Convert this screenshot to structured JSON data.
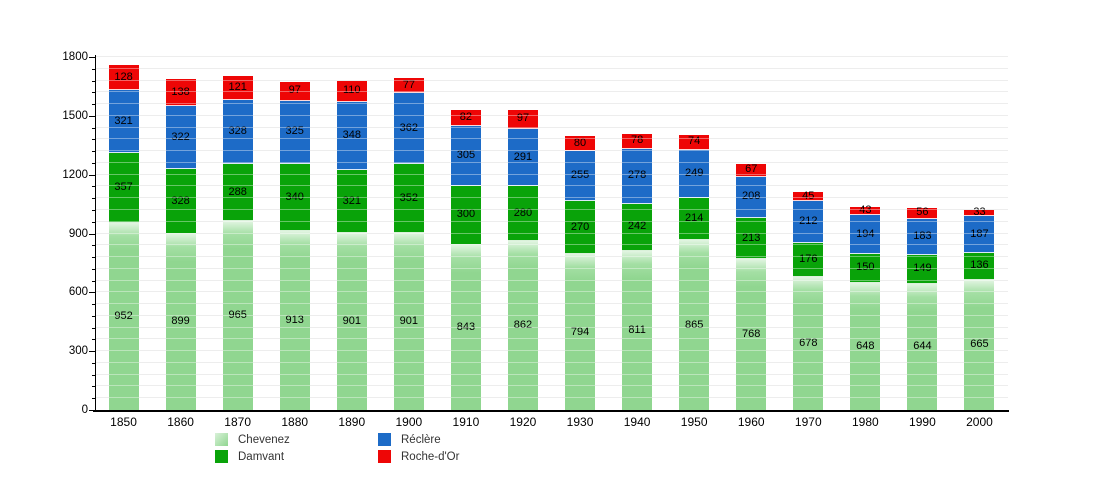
{
  "chart_data": {
    "type": "bar",
    "stacked": true,
    "categories": [
      "1850",
      "1860",
      "1870",
      "1880",
      "1890",
      "1900",
      "1910",
      "1920",
      "1930",
      "1940",
      "1950",
      "1960",
      "1970",
      "1980",
      "1990",
      "2000"
    ],
    "series": [
      {
        "name": "Chevenez",
        "color": "#90d690",
        "values": [
          952,
          899,
          965,
          913,
          901,
          901,
          843,
          862,
          794,
          811,
          865,
          768,
          678,
          648,
          644,
          665
        ]
      },
      {
        "name": "Damvant",
        "color": "#09a309",
        "values": [
          357,
          328,
          288,
          340,
          321,
          352,
          300,
          280,
          270,
          242,
          214,
          213,
          176,
          150,
          149,
          136
        ]
      },
      {
        "name": "Réclère",
        "color": "#1d6bc7",
        "values": [
          321,
          322,
          328,
          325,
          348,
          362,
          305,
          291,
          255,
          278,
          249,
          208,
          212,
          194,
          183,
          187
        ]
      },
      {
        "name": "Roche-d'Or",
        "color": "#ee0606",
        "values": [
          128,
          138,
          121,
          97,
          110,
          77,
          82,
          97,
          80,
          78,
          74,
          67,
          45,
          43,
          56,
          33
        ]
      }
    ],
    "title": "",
    "xlabel": "",
    "ylabel": "",
    "ylim": [
      0,
      1800
    ],
    "y_major_ticks": [
      0,
      300,
      600,
      900,
      1200,
      1500,
      1800
    ],
    "y_minor_step": 60,
    "grid": true,
    "bar_value_labels": true,
    "legend_position": "bottom-left",
    "legend_display_order": [
      0,
      2,
      1,
      3
    ]
  }
}
